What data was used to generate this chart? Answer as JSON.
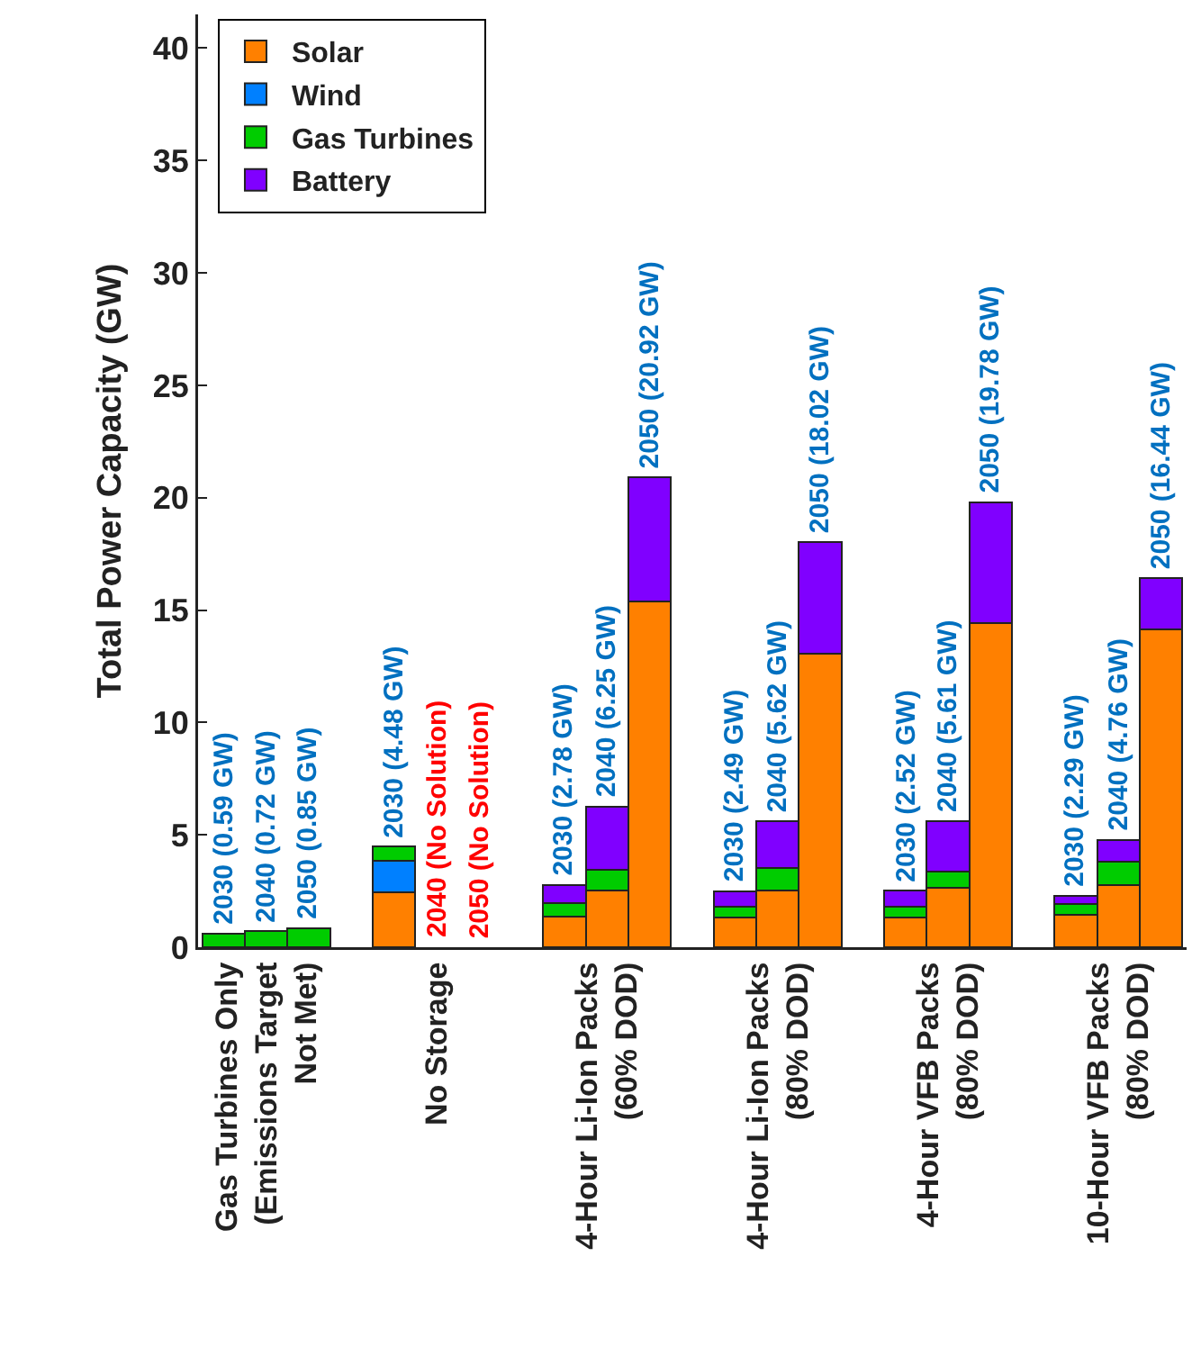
{
  "chart_data": {
    "type": "bar",
    "stacked": true,
    "ylabel": "Total Power Capacity (GW)",
    "categories": [
      null,
      "Gas Turbines Only\n(Emissions Target\nNot Met)",
      null,
      null,
      null,
      "No Storage",
      null,
      null,
      null,
      "4-Hour Li-Ion Packs\n(60% DOD)",
      null,
      null,
      null,
      "4-Hour Li-Ion Packs\n(80% DOD)",
      null,
      null,
      null,
      "4-Hour VFB Packs\n(80% DOD)",
      null,
      null,
      null,
      "10-Hour VFB Packs\n(80% DOD)",
      null
    ],
    "series": [
      {
        "name": "Solar",
        "color": "#ff8000",
        "values": [
          null,
          null,
          null,
          null,
          2.44,
          null,
          null,
          null,
          1.38,
          2.52,
          15.37,
          null,
          1.33,
          2.52,
          13.07,
          null,
          1.33,
          2.65,
          14.42,
          null,
          1.46,
          2.78,
          14.13
        ]
      },
      {
        "name": "Wind",
        "color": "#0080ff",
        "values": [
          null,
          null,
          null,
          null,
          1.4,
          null,
          null,
          null,
          null,
          null,
          null,
          null,
          null,
          null,
          null,
          null,
          null,
          null,
          null,
          null,
          null,
          null,
          null
        ]
      },
      {
        "name": "Gas Turbines",
        "color": "#00cc00",
        "values": [
          0.59,
          0.72,
          0.85,
          null,
          0.64,
          null,
          null,
          null,
          0.58,
          0.92,
          null,
          null,
          0.47,
          1.0,
          null,
          null,
          0.47,
          0.72,
          null,
          null,
          0.47,
          1.01,
          null
        ]
      },
      {
        "name": "Battery",
        "color": "#8000ff",
        "values": [
          null,
          null,
          null,
          null,
          null,
          null,
          null,
          null,
          0.82,
          2.81,
          5.55,
          null,
          0.69,
          2.1,
          4.95,
          null,
          0.72,
          2.24,
          5.36,
          null,
          0.36,
          0.97,
          2.31
        ]
      }
    ],
    "totals": [
      "2030 (0.59 GW)",
      "2040 (0.72 GW)",
      "2050 (0.85 GW)",
      null,
      "2030 (4.48 GW)",
      null,
      null,
      null,
      "2030 (2.78 GW)",
      "2040 (6.25 GW)",
      "2050 (20.92 GW)",
      null,
      "2030 (2.49 GW)",
      "2040 (5.62 GW)",
      "2050 (18.02 GW)",
      null,
      "2030 (2.52 GW)",
      "2040 (5.61 GW)",
      "2050 (19.78 GW)",
      null,
      "2030 (2.29 GW)",
      "2040 (4.76 GW)",
      "2050 (16.44 GW)"
    ],
    "ylim": [
      0,
      41.5
    ],
    "yticks": [
      0,
      5,
      10,
      15,
      20,
      25,
      30,
      35,
      40
    ],
    "annotations": [
      "2040 (No Solution)",
      "2050 (No Solution)"
    ],
    "legend": "top left",
    "grid": false
  }
}
